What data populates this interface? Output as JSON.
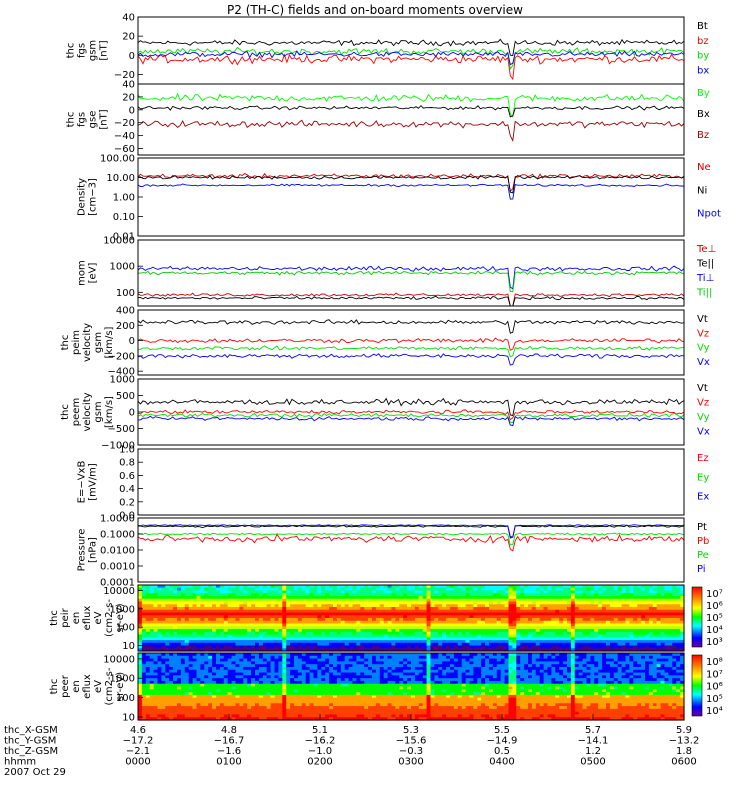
{
  "title": "P2 (TH-C) fields and on-board moments overview",
  "chart_data": [
    {
      "type": "line",
      "ylabel": [
        "thc",
        "fgs",
        "gsm",
        "[nT]"
      ],
      "ylim": [
        -30,
        40
      ],
      "yticks": [
        "40",
        "20",
        "0",
        "−20"
      ],
      "ytick_values": [
        40,
        20,
        0,
        -20
      ],
      "log": false,
      "series": [
        {
          "name": "Bt",
          "color": "#000000",
          "base": 13,
          "amp": 4
        },
        {
          "name": "bz",
          "color": "#ff0000",
          "base": -4,
          "amp": 6
        },
        {
          "name": "by",
          "color": "#00dd00",
          "base": 4,
          "amp": 5
        },
        {
          "name": "bx",
          "color": "#0000ff",
          "base": 1,
          "amp": 4
        }
      ]
    },
    {
      "type": "line",
      "ylabel": [
        "thc",
        "fgs",
        "gse",
        "[nT]"
      ],
      "ylim": [
        -70,
        40
      ],
      "yticks": [
        "40",
        "20",
        "0",
        "−20",
        "−40",
        "−60"
      ],
      "ytick_values": [
        40,
        20,
        0,
        -20,
        -40,
        -60
      ],
      "log": false,
      "series": [
        {
          "name": "By",
          "color": "#00ff00",
          "base": 18,
          "amp": 8
        },
        {
          "name": "Bx",
          "color": "#000000",
          "base": 3,
          "amp": 4
        },
        {
          "name": "Bz",
          "color": "#990000",
          "base": -22,
          "amp": 7
        }
      ]
    },
    {
      "type": "line",
      "ylabel": [
        "Density",
        "[cm−3]"
      ],
      "ylim": [
        0.01,
        100
      ],
      "yticks": [
        "100.00",
        "10.00",
        "1.00",
        "0.10",
        "0.01"
      ],
      "ytick_values": [
        100,
        10,
        1,
        0.1,
        0.01
      ],
      "log": true,
      "series": [
        {
          "name": "Ne",
          "color": "#cc0000",
          "base": 12,
          "amp": 0.15
        },
        {
          "name": "Ni",
          "color": "#000000",
          "base": 10,
          "amp": 0.12
        },
        {
          "name": "Npot",
          "color": "#0000ff",
          "base": 4,
          "amp": 0.08
        }
      ]
    },
    {
      "type": "line",
      "ylabel": [
        "mom",
        "[eV]"
      ],
      "ylim": [
        30,
        10000
      ],
      "yticks": [
        "10000",
        "1000",
        "100"
      ],
      "ytick_values": [
        10000,
        1000,
        100
      ],
      "log": true,
      "series": [
        {
          "name": "Te⊥",
          "color": "#cc0000",
          "base": 80,
          "amp": 0.08
        },
        {
          "name": "Te||",
          "color": "#000000",
          "base": 60,
          "amp": 0.08
        },
        {
          "name": "Ti⊥",
          "color": "#0000ff",
          "base": 800,
          "amp": 0.12
        },
        {
          "name": "Ti||",
          "color": "#00cc00",
          "base": 550,
          "amp": 0.1
        }
      ]
    },
    {
      "type": "line",
      "ylabel": [
        "thc",
        "peim",
        "velocity",
        "gsm",
        "[km/s]"
      ],
      "ylim": [
        -450,
        400
      ],
      "yticks": [
        "400",
        "200",
        "0",
        "−200",
        "−400"
      ],
      "ytick_values": [
        400,
        200,
        0,
        -200,
        -400
      ],
      "log": false,
      "series": [
        {
          "name": "Vt",
          "color": "#000000",
          "base": 240,
          "amp": 40
        },
        {
          "name": "Vz",
          "color": "#ff0000",
          "base": 0,
          "amp": 40
        },
        {
          "name": "Vy",
          "color": "#00dd00",
          "base": -100,
          "amp": 35
        },
        {
          "name": "Vx",
          "color": "#0000ff",
          "base": -200,
          "amp": 40
        }
      ]
    },
    {
      "type": "line",
      "ylabel": [
        "thc",
        "peem",
        "velocity",
        "gsm",
        "[km/s]"
      ],
      "ylim": [
        -1000,
        1000
      ],
      "yticks": [
        "1000",
        "500",
        "0",
        "−500",
        "−1000"
      ],
      "ytick_values": [
        1000,
        500,
        0,
        -500,
        -1000
      ],
      "log": false,
      "series": [
        {
          "name": "Vt",
          "color": "#000000",
          "base": 300,
          "amp": 120
        },
        {
          "name": "Vz",
          "color": "#ff0000",
          "base": 0,
          "amp": 80
        },
        {
          "name": "Vy",
          "color": "#00dd00",
          "base": -100,
          "amp": 80
        },
        {
          "name": "Vx",
          "color": "#0000ff",
          "base": -200,
          "amp": 80
        }
      ]
    },
    {
      "type": "line",
      "ylabel": [
        "E=−VxB",
        "[mV/m]"
      ],
      "ylim": [
        0,
        1
      ],
      "yticks": [
        "1.0",
        "0.8",
        "0.6",
        "0.4",
        "0.2",
        "0.0"
      ],
      "ytick_values": [
        1.0,
        0.8,
        0.6,
        0.4,
        0.2,
        0.0
      ],
      "log": false,
      "series": [
        {
          "name": "Ez",
          "color": "#ff0000"
        },
        {
          "name": "Ey",
          "color": "#00dd00"
        },
        {
          "name": "Ex",
          "color": "#0000ff"
        }
      ]
    },
    {
      "type": "line",
      "ylabel": [
        "Pressure",
        "[nPa]"
      ],
      "ylim": [
        0.0001,
        1
      ],
      "yticks": [
        "1.0000",
        "0.1000",
        "0.0100",
        "0.0010",
        "0.0001"
      ],
      "ytick_values": [
        1,
        0.1,
        0.01,
        0.001,
        0.0001
      ],
      "log": true,
      "series": [
        {
          "name": "Pt",
          "color": "#000000",
          "base": 0.3,
          "amp": 0.08
        },
        {
          "name": "Pb",
          "color": "#ff0000",
          "base": 0.05,
          "amp": 0.3
        },
        {
          "name": "Pe",
          "color": "#00dd00",
          "base": 0.1,
          "amp": 0.08
        },
        {
          "name": "Pi",
          "color": "#0000ff",
          "base": 0.35,
          "amp": 0.05
        }
      ]
    },
    {
      "type": "heatmap",
      "ylabel": [
        "thc",
        "peir",
        "en",
        "eflux",
        "eV",
        "(cm2-s-",
        "sr-eV)"
      ],
      "ylim": [
        5,
        20000
      ],
      "yticks": [
        "10000",
        "1000",
        "100",
        "10"
      ],
      "ytick_values": [
        10000,
        1000,
        100,
        10
      ],
      "log": true,
      "colorbar_labels": [
        "10⁷",
        "10⁶",
        "10⁵",
        "10⁴",
        "10³"
      ]
    },
    {
      "type": "heatmap",
      "ylabel": [
        "thc",
        "peer",
        "en",
        "eflux",
        "eV",
        "(cm2-s-",
        "sr-eV)"
      ],
      "ylim": [
        7,
        20000
      ],
      "yticks": [
        "10000",
        "1000",
        "100",
        "10"
      ],
      "ytick_values": [
        10000,
        1000,
        100,
        10
      ],
      "log": true,
      "colorbar_labels": [
        "10⁸",
        "10⁷",
        "10⁶",
        "10⁵",
        "10⁴"
      ]
    }
  ],
  "xaxis": {
    "row_labels": [
      "thc_X-GSM",
      "thc_Y-GSM",
      "thc_Z-GSM",
      "hhmm",
      "2007 Oct 29"
    ],
    "ticks": [
      {
        "x": "4.6",
        "y": "−17.2",
        "z": "−2.1",
        "t": "0000"
      },
      {
        "x": "4.8",
        "y": "−16.7",
        "z": "−1.6",
        "t": "0100"
      },
      {
        "x": "5.1",
        "y": "−16.2",
        "z": "−1.0",
        "t": "0200"
      },
      {
        "x": "5.3",
        "y": "−15.6",
        "z": "−0.3",
        "t": "0300"
      },
      {
        "x": "5.5",
        "y": "−14.9",
        "z": "0.5",
        "t": "0400"
      },
      {
        "x": "5.7",
        "y": "−14.1",
        "z": "1.2",
        "t": "0500"
      },
      {
        "x": "5.9",
        "y": "−13.2",
        "z": "1.8",
        "t": "0600"
      }
    ]
  }
}
